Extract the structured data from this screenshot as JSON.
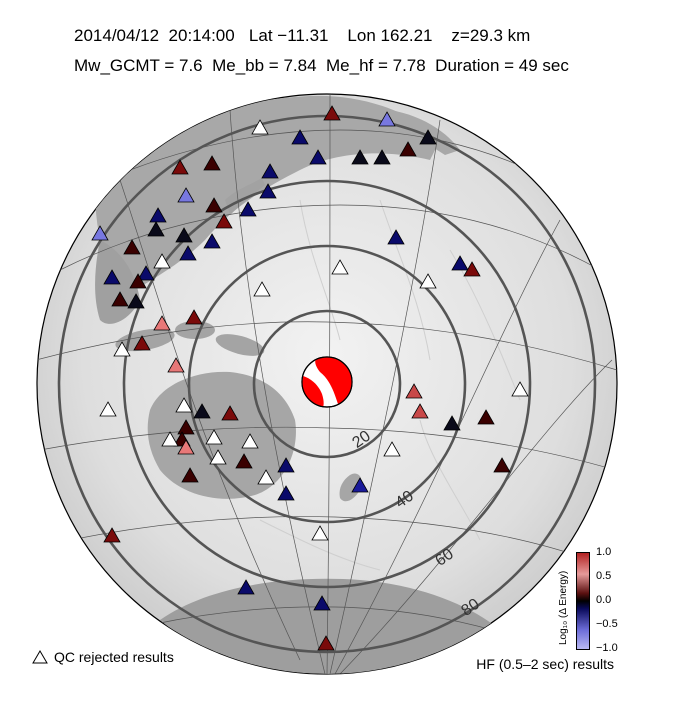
{
  "header": {
    "date": "2014/04/12",
    "time": "20:14:00",
    "lat_label": "Lat",
    "lat_value": "−11.31",
    "lon_label": "Lon",
    "lon_value": "162.21",
    "depth": "z=29.3 km",
    "mw_gcmt": "Mw_GCMT = 7.6",
    "me_bb": "Me_bb = 7.84",
    "me_hf": "Me_hf = 7.78",
    "duration": "Duration = 49 sec"
  },
  "legend": {
    "qc_rejected": "QC rejected results",
    "hf_results": "HF (0.5–2 sec) results"
  },
  "colorbar": {
    "label": "Log₁₀ (Δ Energy)",
    "ticks": [
      "1.0",
      "0.5",
      "0.0",
      "−0.5",
      "−1.0"
    ],
    "scale": [
      "#b22222",
      "#e79a9a",
      "#000000",
      "#6c6cd8",
      "#b8b8f2"
    ]
  },
  "rings": {
    "labels": [
      "20",
      "40",
      "60",
      "80"
    ],
    "degrees": [
      20,
      40,
      60,
      80
    ]
  },
  "chart_data": {
    "type": "scatter",
    "projection": "azimuthal equidistant centered on epicenter",
    "center": {
      "lat": -11.31,
      "lon": 162.21
    },
    "value": "log10 delta energy"
  }
}
